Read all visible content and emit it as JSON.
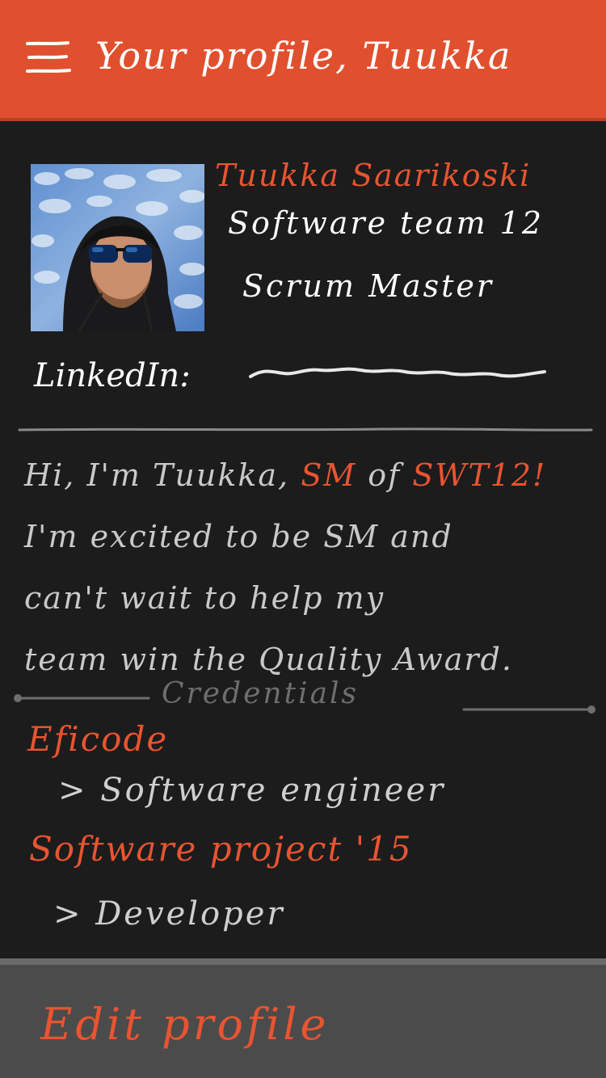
{
  "header": {
    "title": "Your profile, Tuukka",
    "menu_icon": "hamburger-menu-icon"
  },
  "profile": {
    "name": "Tuukka Saarikoski",
    "team": "Software team 12",
    "role": "Scrum Master",
    "linkedin_label": "LinkedIn:",
    "avatar_icon": "profile-photo"
  },
  "bio": {
    "line1_pre": "Hi, I'm Tuukka, ",
    "line1_accent1": "SM",
    "line1_mid": " of ",
    "line1_accent2": "SWT12!",
    "line2": "I'm excited to be SM and",
    "line3": "can't wait to help my",
    "line4": "team win the Quality Award."
  },
  "credentials": {
    "label": "Credentials",
    "items": [
      {
        "company": "Eficode",
        "position": "> Software engineer"
      },
      {
        "company": "Software project '15",
        "position": "> Developer"
      }
    ]
  },
  "footer": {
    "edit_label": "Edit profile"
  },
  "colors": {
    "accent": "#e85431",
    "header_bg": "#e0502f",
    "background": "#1c1c1c",
    "footer_bg": "#4b4b4b"
  }
}
